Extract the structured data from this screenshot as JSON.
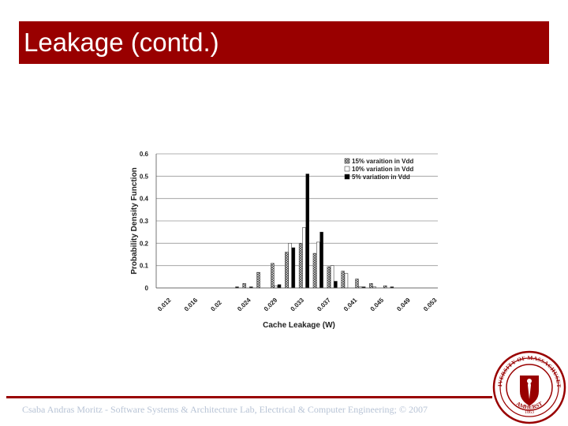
{
  "slide": {
    "title": "Leakage (contd.)",
    "footer": "Csaba Andras Moritz - Software Systems & Architecture Lab, Electrical & Computer Engineering; © 2007",
    "title_bar_color": "#990000"
  },
  "seal": {
    "top_text": "UNIVERSITY OF MASSACHUSETTS",
    "bottom_text": "AMHERST",
    "year": "1863",
    "color": "#990000"
  },
  "chart_data": {
    "type": "bar",
    "xlabel": "Cache Leakage (W)",
    "ylabel": "Probability Density Function",
    "ylim": [
      0,
      0.6
    ],
    "yticks": [
      "0",
      "0.1",
      "0.2",
      "0.3",
      "0.4",
      "0.5",
      "0.6"
    ],
    "xtick_labels": [
      "0.012",
      "0.016",
      "0.02",
      "0.024",
      "0.029",
      "0.033",
      "0.037",
      "0.041",
      "0.045",
      "0.049",
      "0.053"
    ],
    "grid": true,
    "legend_position": "top-right",
    "bins": 20,
    "series": [
      {
        "name": "15% varaition in Vdd",
        "pattern": "hatch",
        "values": [
          0,
          0,
          0,
          0,
          0,
          0,
          0.02,
          0.07,
          0.11,
          0.16,
          0.2,
          0.155,
          0.095,
          0.075,
          0.04,
          0.02,
          0.01,
          0,
          0,
          0
        ]
      },
      {
        "name": "10% variation in Vdd",
        "pattern": "white",
        "values": [
          0,
          0,
          0,
          0,
          0,
          0,
          0,
          0,
          0.01,
          0.2,
          0.27,
          0.205,
          0.1,
          0.065,
          0.005,
          0.005,
          0,
          0,
          0,
          0
        ]
      },
      {
        "name": "5% variation in Vdd",
        "pattern": "black",
        "values": [
          0,
          0,
          0,
          0,
          0,
          0.005,
          0.005,
          0,
          0.015,
          0.18,
          0.51,
          0.25,
          0.03,
          0,
          0.005,
          0,
          0.005,
          0,
          0,
          0
        ]
      }
    ]
  }
}
